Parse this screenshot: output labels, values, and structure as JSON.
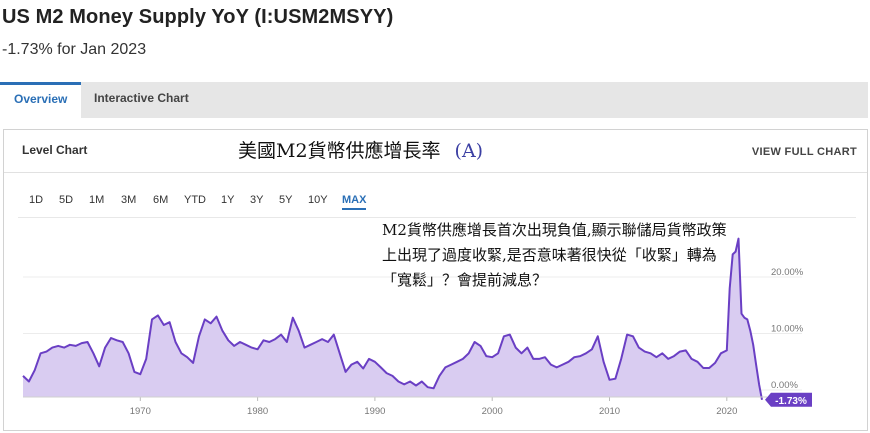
{
  "header": {
    "title": "US M2 Money Supply YoY (I:USM2MSYY)",
    "subtitle": "-1.73% for Jan 2023"
  },
  "tabs": [
    {
      "label": "Overview",
      "active": true
    },
    {
      "label": "Interactive Chart",
      "active": false
    }
  ],
  "card": {
    "title": "Level Chart",
    "view_full": "VIEW FULL CHART"
  },
  "annotation": {
    "title": "美國M2貨幣供應增長率",
    "letter": "(A)",
    "body": "M2貨幣供應增長首次出現負值,顯示聯儲局貨幣政策上出現了過度收緊,是否意味著很快從「收緊」轉為「寬鬆」？會提前減息？"
  },
  "ranges": [
    "1D",
    "5D",
    "1M",
    "3M",
    "6M",
    "YTD",
    "1Y",
    "3Y",
    "5Y",
    "10Y",
    "MAX"
  ],
  "active_range": "MAX",
  "colors": {
    "line": "#6a3fc4",
    "fill": "#d9ccf1",
    "accent": "#2a6fb6",
    "badge": "#6a3fc4"
  },
  "chart_data": {
    "type": "area",
    "x": [
      1960.0,
      1960.5,
      1961.0,
      1961.5,
      1962.0,
      1962.5,
      1963.0,
      1963.5,
      1964.0,
      1964.5,
      1965.0,
      1965.5,
      1966.0,
      1966.5,
      1967.0,
      1967.5,
      1968.0,
      1968.5,
      1969.0,
      1969.5,
      1970.0,
      1970.5,
      1971.0,
      1971.5,
      1972.0,
      1972.5,
      1973.0,
      1973.5,
      1974.0,
      1974.5,
      1975.0,
      1975.5,
      1976.0,
      1976.5,
      1977.0,
      1977.5,
      1978.0,
      1978.5,
      1979.0,
      1979.5,
      1980.0,
      1980.5,
      1981.0,
      1981.5,
      1982.0,
      1982.5,
      1983.0,
      1983.5,
      1984.0,
      1984.5,
      1985.0,
      1985.5,
      1986.0,
      1986.5,
      1987.0,
      1987.5,
      1988.0,
      1988.5,
      1989.0,
      1989.5,
      1990.0,
      1990.5,
      1991.0,
      1991.5,
      1992.0,
      1992.5,
      1993.0,
      1993.5,
      1994.0,
      1994.5,
      1995.0,
      1995.5,
      1996.0,
      1996.5,
      1997.0,
      1997.5,
      1998.0,
      1998.5,
      1999.0,
      1999.5,
      2000.0,
      2000.5,
      2001.0,
      2001.5,
      2002.0,
      2002.5,
      2003.0,
      2003.5,
      2004.0,
      2004.5,
      2005.0,
      2005.5,
      2006.0,
      2006.5,
      2007.0,
      2007.5,
      2008.0,
      2008.5,
      2009.0,
      2009.5,
      2010.0,
      2010.5,
      2011.0,
      2011.5,
      2012.0,
      2012.5,
      2013.0,
      2013.5,
      2014.0,
      2014.5,
      2015.0,
      2015.5,
      2016.0,
      2016.5,
      2017.0,
      2017.5,
      2018.0,
      2018.5,
      2019.0,
      2019.5,
      2020.0,
      2020.25,
      2020.5,
      2020.75,
      2021.0,
      2021.25,
      2021.5,
      2021.75,
      2022.0,
      2022.25,
      2022.5,
      2022.75,
      2023.0
    ],
    "y": [
      2.5,
      1.5,
      3.5,
      6.5,
      6.8,
      7.5,
      7.8,
      7.5,
      8.0,
      7.8,
      8.3,
      8.5,
      6.5,
      4.2,
      7.5,
      9.2,
      8.8,
      8.5,
      6.5,
      3.2,
      2.8,
      5.5,
      12.5,
      13.2,
      11.5,
      12.0,
      8.5,
      6.5,
      5.8,
      4.8,
      9.5,
      12.5,
      11.8,
      13.0,
      10.5,
      8.8,
      7.8,
      8.5,
      8.0,
      7.5,
      7.2,
      8.8,
      8.5,
      9.0,
      9.8,
      8.5,
      12.8,
      10.5,
      7.5,
      8.0,
      8.5,
      9.0,
      8.5,
      9.8,
      6.5,
      3.2,
      4.5,
      5.0,
      3.8,
      5.5,
      5.0,
      4.0,
      3.0,
      2.5,
      1.5,
      1.0,
      1.5,
      0.8,
      1.5,
      0.5,
      0.3,
      2.5,
      4.0,
      4.5,
      5.0,
      5.5,
      6.5,
      8.5,
      7.8,
      6.0,
      5.8,
      6.5,
      9.5,
      9.8,
      7.5,
      6.5,
      7.5,
      5.5,
      5.5,
      5.8,
      4.5,
      4.0,
      4.5,
      5.0,
      5.8,
      6.0,
      6.5,
      7.2,
      9.5,
      5.0,
      1.8,
      2.0,
      5.5,
      9.8,
      9.5,
      7.5,
      6.8,
      6.5,
      5.8,
      6.5,
      5.5,
      6.0,
      6.8,
      7.0,
      5.5,
      5.0,
      3.9,
      3.9,
      4.8,
      6.5,
      7.0,
      18.0,
      24.0,
      24.5,
      26.8,
      13.5,
      12.8,
      12.5,
      10.5,
      8.0,
      4.5,
      1.0,
      -1.73
    ],
    "x_ticks": [
      "1970",
      "1980",
      "1990",
      "2000",
      "2010",
      "2020"
    ],
    "y_ticks": [
      "20.00%",
      "10.00%",
      "0.00%"
    ],
    "last_value_label": "-1.73%",
    "xlim": [
      1960,
      2023
    ],
    "ylim": [
      -3,
      28
    ]
  }
}
